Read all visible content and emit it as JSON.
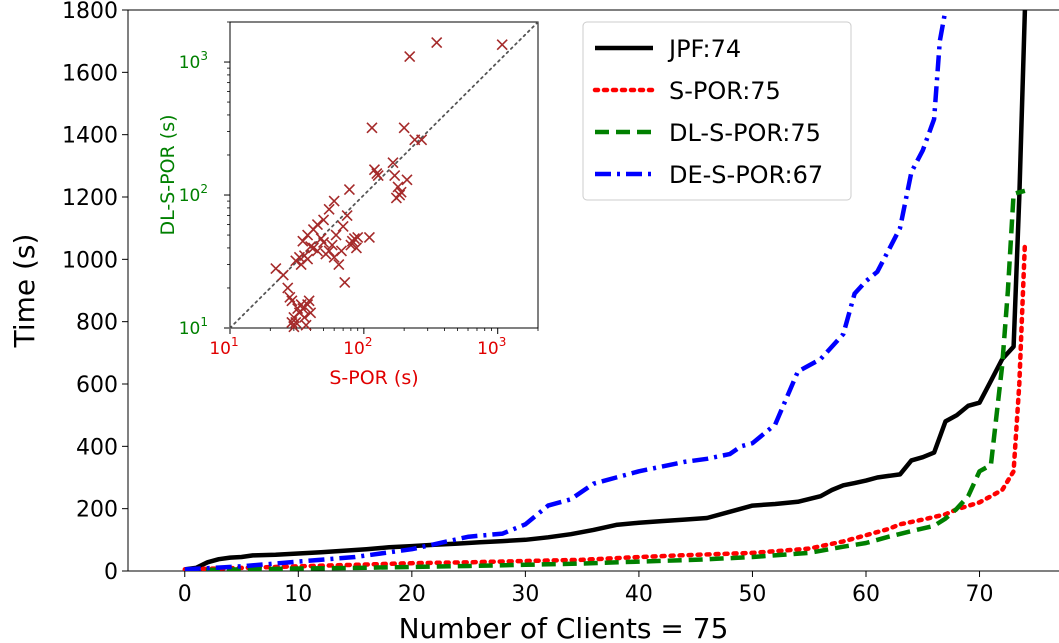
{
  "chart_data": [
    {
      "type": "line",
      "xlabel": "Number of Clients = 75",
      "ylabel": "Time (s)",
      "xlim": [
        -5,
        77
      ],
      "ylim": [
        0,
        1800
      ],
      "xticks": [
        "0",
        "10",
        "20",
        "30",
        "40",
        "50",
        "60",
        "70"
      ],
      "yticks": [
        "0",
        "200",
        "400",
        "600",
        "800",
        "1000",
        "1200",
        "1400",
        "1600",
        "1800"
      ],
      "legend_position": "top-right",
      "series": [
        {
          "name": "JPF:74",
          "color": "#000000",
          "style": "solid",
          "x": [
            0,
            1,
            2,
            3,
            4,
            5,
            6,
            8,
            10,
            12,
            14,
            16,
            18,
            20,
            22,
            24,
            26,
            28,
            30,
            32,
            34,
            36,
            38,
            40,
            42,
            44,
            46,
            48,
            50,
            52,
            54,
            56,
            57,
            58,
            59,
            60,
            61,
            62,
            63,
            64,
            65,
            66,
            67,
            68,
            69,
            70,
            71,
            72,
            73,
            73.5,
            74
          ],
          "y": [
            5,
            10,
            28,
            38,
            43,
            45,
            50,
            52,
            56,
            60,
            65,
            70,
            76,
            80,
            84,
            88,
            92,
            96,
            100,
            108,
            118,
            132,
            148,
            155,
            160,
            165,
            170,
            190,
            210,
            215,
            222,
            240,
            260,
            275,
            282,
            290,
            300,
            305,
            310,
            355,
            365,
            380,
            480,
            500,
            530,
            540,
            610,
            680,
            720,
            1200,
            1800
          ]
        },
        {
          "name": "S-POR:75",
          "color": "#ff0000",
          "style": "dotted",
          "x": [
            0,
            5,
            10,
            15,
            20,
            25,
            30,
            35,
            40,
            45,
            50,
            55,
            58,
            60,
            62,
            63,
            65,
            67,
            68,
            70,
            71,
            72,
            73,
            73.5,
            74
          ],
          "y": [
            5,
            10,
            15,
            20,
            25,
            28,
            32,
            36,
            45,
            52,
            58,
            72,
            95,
            115,
            135,
            150,
            165,
            182,
            198,
            220,
            240,
            260,
            320,
            600,
            1050
          ]
        },
        {
          "name": "DL-S-POR:75",
          "color": "#008000",
          "style": "dashed",
          "x": [
            0,
            5,
            10,
            15,
            20,
            25,
            30,
            35,
            40,
            45,
            50,
            55,
            58,
            60,
            62,
            64,
            66,
            67,
            68,
            69,
            70,
            71,
            72,
            72.5,
            73,
            74
          ],
          "y": [
            2,
            5,
            8,
            10,
            13,
            16,
            20,
            24,
            30,
            36,
            45,
            58,
            78,
            90,
            110,
            128,
            145,
            168,
            200,
            240,
            320,
            340,
            660,
            900,
            1210,
            1220
          ]
        },
        {
          "name": "DE-S-POR:67",
          "color": "#0000ff",
          "style": "dashdot",
          "x": [
            0,
            5,
            10,
            15,
            20,
            25,
            28,
            30,
            32,
            34,
            36,
            38,
            40,
            42,
            44,
            46,
            48,
            49,
            50,
            52,
            54,
            56,
            58,
            59,
            60,
            61,
            62,
            63,
            64,
            65,
            66,
            66.5,
            67
          ],
          "y": [
            5,
            15,
            30,
            45,
            70,
            110,
            120,
            150,
            210,
            230,
            280,
            300,
            320,
            335,
            350,
            360,
            375,
            400,
            410,
            470,
            640,
            680,
            760,
            890,
            930,
            960,
            1030,
            1100,
            1280,
            1350,
            1450,
            1700,
            1800
          ]
        }
      ]
    },
    {
      "type": "scatter",
      "xlabel": "S-POR (s)",
      "ylabel": "DL-S-POR (s)",
      "xscale": "log",
      "yscale": "log",
      "xlim": [
        10,
        2000
      ],
      "ylim": [
        10,
        2000
      ],
      "xticks": [
        "10^1",
        "10^2",
        "10^3"
      ],
      "yticks": [
        "10^1",
        "10^2",
        "10^3"
      ],
      "diagonal": true,
      "marker_color": "#a52a2a",
      "points": [
        [
          22,
          28
        ],
        [
          25,
          25
        ],
        [
          27,
          20
        ],
        [
          28,
          17
        ],
        [
          29,
          16
        ],
        [
          30,
          12
        ],
        [
          31,
          11
        ],
        [
          32,
          14
        ],
        [
          33,
          13
        ],
        [
          34,
          15
        ],
        [
          35,
          14
        ],
        [
          36,
          12
        ],
        [
          37,
          10.5
        ],
        [
          38,
          15
        ],
        [
          39,
          16
        ],
        [
          40,
          13
        ],
        [
          29,
          11
        ],
        [
          30,
          10.2
        ],
        [
          31,
          32
        ],
        [
          33,
          34
        ],
        [
          34,
          30
        ],
        [
          36,
          35
        ],
        [
          38,
          33
        ],
        [
          40,
          41
        ],
        [
          42,
          40
        ],
        [
          45,
          38
        ],
        [
          48,
          47
        ],
        [
          50,
          44
        ],
        [
          52,
          36
        ],
        [
          55,
          38
        ],
        [
          58,
          42
        ],
        [
          60,
          34
        ],
        [
          62,
          50
        ],
        [
          65,
          30
        ],
        [
          68,
          38
        ],
        [
          70,
          58
        ],
        [
          72,
          22
        ],
        [
          75,
          70
        ],
        [
          78,
          110
        ],
        [
          80,
          42
        ],
        [
          82,
          45
        ],
        [
          85,
          47
        ],
        [
          88,
          40
        ],
        [
          90,
          48
        ],
        [
          110,
          48
        ],
        [
          115,
          320
        ],
        [
          120,
          155
        ],
        [
          125,
          145
        ],
        [
          128,
          140
        ],
        [
          165,
          175
        ],
        [
          170,
          140
        ],
        [
          175,
          95
        ],
        [
          180,
          115
        ],
        [
          185,
          100
        ],
        [
          190,
          105
        ],
        [
          200,
          320
        ],
        [
          210,
          130
        ],
        [
          220,
          1100
        ],
        [
          240,
          260
        ],
        [
          270,
          260
        ],
        [
          350,
          1400
        ],
        [
          1080,
          1350
        ],
        [
          45,
          60
        ],
        [
          42,
          55
        ],
        [
          50,
          65
        ],
        [
          55,
          78
        ],
        [
          60,
          90
        ],
        [
          38,
          50
        ],
        [
          35,
          45
        ]
      ]
    }
  ],
  "legend": {
    "items": [
      {
        "label": "JPF:74",
        "color": "#000000",
        "dash": ""
      },
      {
        "label": "S-POR:75",
        "color": "#ff0000",
        "dash": "3,6"
      },
      {
        "label": "DL-S-POR:75",
        "color": "#008000",
        "dash": "14,7"
      },
      {
        "label": "DE-S-POR:67",
        "color": "#0000ff",
        "dash": "16,6,3,6"
      }
    ]
  }
}
